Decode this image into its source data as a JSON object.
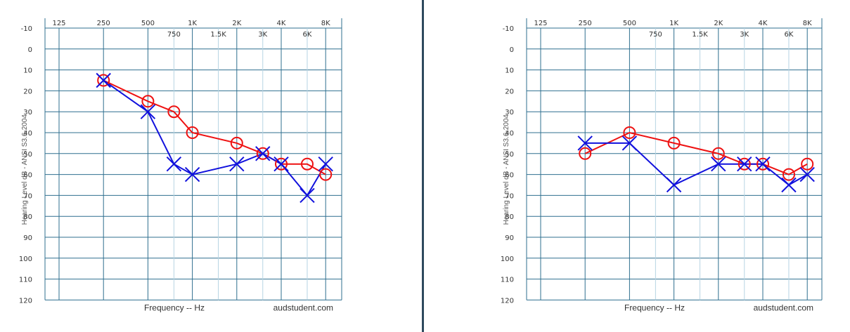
{
  "chart_data": [
    {
      "type": "line",
      "title": "",
      "ylabel": "Hearing Level dB - ANSI S3.6-2004",
      "xlabel": "Frequency -- Hz",
      "watermark": "audstudent.com",
      "ylim": [
        -10,
        120
      ],
      "y_inverted": true,
      "x_scale": "log",
      "x_ticks_major": [
        {
          "value": 125,
          "label": "125"
        },
        {
          "value": 250,
          "label": "250"
        },
        {
          "value": 500,
          "label": "500"
        },
        {
          "value": 1000,
          "label": "1K"
        },
        {
          "value": 2000,
          "label": "2K"
        },
        {
          "value": 4000,
          "label": "4K"
        },
        {
          "value": 8000,
          "label": "8K"
        }
      ],
      "x_ticks_minor": [
        {
          "value": 750,
          "label": "750"
        },
        {
          "value": 1500,
          "label": "1.5K"
        },
        {
          "value": 3000,
          "label": "3K"
        },
        {
          "value": 6000,
          "label": "6K"
        }
      ],
      "y_ticks": [
        "-10",
        "0",
        "10",
        "20",
        "30",
        "40",
        "50",
        "60",
        "70",
        "80",
        "90",
        "100",
        "110",
        "120"
      ],
      "grid": true,
      "series": [
        {
          "symbol": "O",
          "color": "#ee1111",
          "x": [
            250,
            500,
            750,
            1000,
            2000,
            3000,
            4000,
            6000,
            8000
          ],
          "y": [
            15,
            25,
            30,
            40,
            45,
            50,
            55,
            55,
            60
          ]
        },
        {
          "symbol": "X",
          "color": "#1111dd",
          "x": [
            250,
            500,
            750,
            1000,
            2000,
            3000,
            4000,
            6000,
            8000
          ],
          "y": [
            15,
            30,
            55,
            60,
            55,
            50,
            55,
            70,
            55
          ]
        }
      ]
    },
    {
      "type": "line",
      "title": "",
      "ylabel": "Hearing Level dB - ANSI S3.6-2004",
      "xlabel": "Frequency -- Hz",
      "watermark": "audstudent.com",
      "ylim": [
        -10,
        120
      ],
      "y_inverted": true,
      "x_scale": "log",
      "x_ticks_major": [
        {
          "value": 125,
          "label": "125"
        },
        {
          "value": 250,
          "label": "250"
        },
        {
          "value": 500,
          "label": "500"
        },
        {
          "value": 1000,
          "label": "1K"
        },
        {
          "value": 2000,
          "label": "2K"
        },
        {
          "value": 4000,
          "label": "4K"
        },
        {
          "value": 8000,
          "label": "8K"
        }
      ],
      "x_ticks_minor": [
        {
          "value": 750,
          "label": "750"
        },
        {
          "value": 1500,
          "label": "1.5K"
        },
        {
          "value": 3000,
          "label": "3K"
        },
        {
          "value": 6000,
          "label": "6K"
        }
      ],
      "y_ticks": [
        "-10",
        "0",
        "10",
        "20",
        "30",
        "40",
        "50",
        "60",
        "70",
        "80",
        "90",
        "100",
        "110",
        "120"
      ],
      "grid": true,
      "series": [
        {
          "symbol": "O",
          "color": "#ee1111",
          "x": [
            250,
            500,
            1000,
            2000,
            3000,
            4000,
            6000,
            8000
          ],
          "y": [
            50,
            40,
            45,
            50,
            55,
            55,
            60,
            55
          ]
        },
        {
          "symbol": "X",
          "color": "#1111dd",
          "x": [
            250,
            500,
            1000,
            2000,
            3000,
            4000,
            6000,
            8000
          ],
          "y": [
            45,
            45,
            65,
            55,
            55,
            55,
            65,
            60
          ]
        }
      ]
    }
  ]
}
